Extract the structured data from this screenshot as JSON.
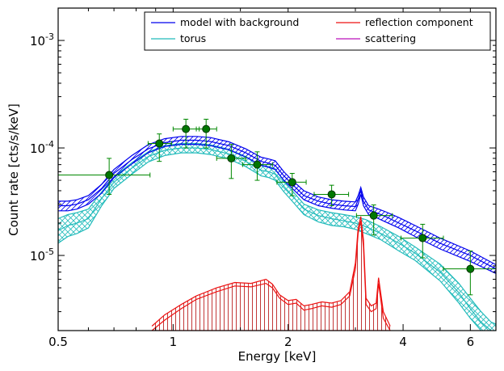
{
  "chart_data": {
    "type": "line",
    "xlabel": "Energy [keV]",
    "ylabel": "Count rate [cts/s/keV]",
    "x_scale": "log",
    "y_scale": "log",
    "xlim": [
      0.5,
      7.0
    ],
    "ylim": [
      2e-06,
      0.002
    ],
    "x_ticks": [
      {
        "value": 0.5,
        "label": "0.5"
      },
      {
        "value": 1,
        "label": "1"
      },
      {
        "value": 2,
        "label": "2"
      },
      {
        "value": 4,
        "label": "4"
      },
      {
        "value": 6,
        "label": "6"
      }
    ],
    "y_ticks": [
      {
        "value": 0.001,
        "base": "10",
        "exp": "-3"
      },
      {
        "value": 0.0001,
        "base": "10",
        "exp": "-4"
      },
      {
        "value": 1e-05,
        "base": "10",
        "exp": "-5"
      }
    ],
    "legend": {
      "position": "top-right",
      "columns": 2,
      "entries": [
        {
          "label": "model with background",
          "color": "#0000ee"
        },
        {
          "label": "reflection component",
          "color": "#ee1111"
        },
        {
          "label": "torus",
          "color": "#22bbbb"
        },
        {
          "label": "scattering",
          "color": "#bb11bb"
        }
      ]
    },
    "series": [
      {
        "name": "model with background",
        "color": "#0000ee",
        "band": true,
        "hatch": "diagonal",
        "x": [
          0.5,
          0.53,
          0.56,
          0.6,
          0.65,
          0.7,
          0.78,
          0.86,
          0.95,
          1.05,
          1.15,
          1.25,
          1.4,
          1.55,
          1.7,
          1.78,
          1.85,
          1.95,
          2.05,
          2.2,
          2.4,
          2.6,
          2.8,
          3.0,
          3.05,
          3.1,
          3.15,
          3.25,
          3.4,
          3.6,
          3.9,
          4.3,
          5.0,
          6.0,
          7.0
        ],
        "y": [
          2.9e-05,
          2.9e-05,
          3e-05,
          3.3e-05,
          4.2e-05,
          5.8e-05,
          7.8e-05,
          9.8e-05,
          0.000112,
          0.000118,
          0.000118,
          0.000115,
          0.000105,
          9e-05,
          7.5e-05,
          7.2e-05,
          6.9e-05,
          5.5e-05,
          4.6e-05,
          3.6e-05,
          3.2e-05,
          3e-05,
          2.9e-05,
          2.85e-05,
          3.3e-05,
          4e-05,
          3.2e-05,
          2.65e-05,
          2.5e-05,
          2.3e-05,
          2e-05,
          1.7e-05,
          1.3e-05,
          1e-05,
          7.5e-06
        ],
        "lower": [
          2.6e-05,
          2.6e-05,
          2.7e-05,
          3e-05,
          3.8e-05,
          5.3e-05,
          7.1e-05,
          9e-05,
          0.000103,
          0.000108,
          0.000108,
          0.000105,
          9.6e-05,
          8.2e-05,
          6.9e-05,
          6.6e-05,
          6.3e-05,
          5e-05,
          4.2e-05,
          3.3e-05,
          2.9e-05,
          2.75e-05,
          2.65e-05,
          2.6e-05,
          3e-05,
          3.7e-05,
          2.9e-05,
          2.4e-05,
          2.25e-05,
          2.05e-05,
          1.8e-05,
          1.5e-05,
          1.15e-05,
          8.8e-06,
          6.8e-06
        ],
        "upper": [
          3.2e-05,
          3.2e-05,
          3.3e-05,
          3.6e-05,
          4.6e-05,
          6.3e-05,
          8.5e-05,
          0.000107,
          0.000122,
          0.000128,
          0.000128,
          0.000125,
          0.000114,
          9.8e-05,
          8.2e-05,
          7.9e-05,
          7.6e-05,
          6e-05,
          5e-05,
          4e-05,
          3.5e-05,
          3.3e-05,
          3.2e-05,
          3.15e-05,
          3.6e-05,
          4.3e-05,
          3.5e-05,
          2.9e-05,
          2.75e-05,
          2.55e-05,
          2.25e-05,
          1.9e-05,
          1.45e-05,
          1.1e-05,
          8.2e-06
        ]
      },
      {
        "name": "torus",
        "color": "#22bbbb",
        "band": true,
        "hatch": "cross",
        "x": [
          0.5,
          0.53,
          0.56,
          0.6,
          0.65,
          0.7,
          0.78,
          0.86,
          0.95,
          1.05,
          1.15,
          1.25,
          1.4,
          1.55,
          1.7,
          1.78,
          1.85,
          1.95,
          2.05,
          2.2,
          2.4,
          2.6,
          2.8,
          3.0,
          3.2,
          3.5,
          3.9,
          4.3,
          5.0,
          5.6,
          6.0,
          6.4,
          6.8,
          7.0
        ],
        "y": [
          1.7e-05,
          1.9e-05,
          2e-05,
          2.2e-05,
          3.4e-05,
          4.8e-05,
          6.5e-05,
          8.3e-05,
          9.5e-05,
          0.0001,
          0.0001,
          9.7e-05,
          8.8e-05,
          7.5e-05,
          6.2e-05,
          6e-05,
          5.7e-05,
          4.4e-05,
          3.6e-05,
          2.7e-05,
          2.35e-05,
          2.2e-05,
          2.1e-05,
          2e-05,
          1.85e-05,
          1.6e-05,
          1.3e-05,
          1.05e-05,
          7e-06,
          4.5e-06,
          3.2e-06,
          2.4e-06,
          2e-06,
          1.9e-06
        ],
        "lower": [
          1.3e-05,
          1.5e-05,
          1.6e-05,
          1.8e-05,
          2.9e-05,
          4.2e-05,
          5.7e-05,
          7.4e-05,
          8.5e-05,
          9e-05,
          9e-05,
          8.7e-05,
          7.9e-05,
          6.7e-05,
          5.5e-05,
          5.3e-05,
          5e-05,
          3.9e-05,
          3.2e-05,
          2.4e-05,
          2.05e-05,
          1.9e-05,
          1.85e-05,
          1.75e-05,
          1.6e-05,
          1.4e-05,
          1.1e-05,
          9e-06,
          5.8e-06,
          3.6e-06,
          2.6e-06,
          2e-06,
          1.7e-06,
          1.6e-06
        ],
        "upper": [
          2.2e-05,
          2.4e-05,
          2.5e-05,
          2.7e-05,
          3.9e-05,
          5.4e-05,
          7.3e-05,
          9.2e-05,
          0.000105,
          0.00011,
          0.00011,
          0.000107,
          9.7e-05,
          8.3e-05,
          6.9e-05,
          6.7e-05,
          6.4e-05,
          4.9e-05,
          4e-05,
          3e-05,
          2.65e-05,
          2.5e-05,
          2.4e-05,
          2.3e-05,
          2.15e-05,
          1.85e-05,
          1.5e-05,
          1.2e-05,
          8.3e-06,
          5.5e-06,
          4e-06,
          3e-06,
          2.4e-06,
          2.3e-06
        ]
      },
      {
        "name": "reflection component",
        "color": "#ee1111",
        "band": true,
        "hatch": "vertical",
        "x": [
          0.88,
          0.95,
          1.05,
          1.15,
          1.3,
          1.45,
          1.6,
          1.75,
          1.82,
          1.9,
          2.0,
          2.1,
          2.2,
          2.3,
          2.45,
          2.6,
          2.75,
          2.9,
          3.0,
          3.05,
          3.1,
          3.15,
          3.2,
          3.3,
          3.4,
          3.45,
          3.55,
          3.7
        ],
        "y": [
          2e-06,
          2.5e-06,
          3.2e-06,
          3.9e-06,
          4.6e-06,
          5.2e-06,
          5.1e-06,
          5.5e-06,
          5e-06,
          4e-06,
          3.5e-06,
          3.6e-06,
          3.1e-06,
          3.2e-06,
          3.4e-06,
          3.3e-06,
          3.5e-06,
          4.2e-06,
          7.5e-06,
          1.6e-05,
          2.1e-05,
          1.2e-05,
          3.5e-06,
          3e-06,
          3.2e-06,
          5.5e-06,
          2.6e-06,
          2e-06
        ],
        "lower": [
          2e-06,
          2e-06,
          2e-06,
          2e-06,
          2e-06,
          2e-06,
          2e-06,
          2e-06,
          2e-06,
          2e-06,
          2e-06,
          2e-06,
          2e-06,
          2e-06,
          2e-06,
          2e-06,
          2e-06,
          2e-06,
          2e-06,
          2e-06,
          2e-06,
          2e-06,
          2e-06,
          2e-06,
          2e-06,
          2e-06,
          2e-06,
          2e-06
        ],
        "upper": [
          2.2e-06,
          2.8e-06,
          3.5e-06,
          4.2e-06,
          5e-06,
          5.6e-06,
          5.5e-06,
          6e-06,
          5.4e-06,
          4.3e-06,
          3.8e-06,
          3.9e-06,
          3.4e-06,
          3.5e-06,
          3.7e-06,
          3.6e-06,
          3.8e-06,
          4.6e-06,
          8.5e-06,
          1.8e-05,
          2.3e-05,
          1.4e-05,
          4e-06,
          3.4e-06,
          3.6e-06,
          6.2e-06,
          3e-06,
          2.2e-06
        ]
      },
      {
        "name": "scattering",
        "color": "#bb11bb",
        "band": false,
        "x": [],
        "y": []
      }
    ],
    "data_points": {
      "color": "#008800",
      "points": [
        {
          "x": 0.68,
          "y": 5.6e-05,
          "xerr": [
            0.5,
            0.87
          ],
          "yerr": [
            3.7e-05,
            8e-05
          ]
        },
        {
          "x": 0.92,
          "y": 0.00011,
          "xerr": [
            0.86,
            0.99
          ],
          "yerr": [
            7.5e-05,
            0.000135
          ]
        },
        {
          "x": 1.08,
          "y": 0.00015,
          "xerr": [
            1.0,
            1.17
          ],
          "yerr": [
            0.0001,
            0.000185
          ]
        },
        {
          "x": 1.22,
          "y": 0.00015,
          "xerr": [
            1.15,
            1.3
          ],
          "yerr": [
            0.0001,
            0.000185
          ]
        },
        {
          "x": 1.42,
          "y": 8e-05,
          "xerr": [
            1.3,
            1.55
          ],
          "yerr": [
            5.2e-05,
            0.000108
          ]
        },
        {
          "x": 1.66,
          "y": 7e-05,
          "xerr": [
            1.52,
            1.82
          ],
          "yerr": [
            5e-05,
            9.2e-05
          ]
        },
        {
          "x": 2.05,
          "y": 4.8e-05,
          "xerr": [
            1.87,
            2.23
          ],
          "yerr": [
            3.6e-05,
            5.8e-05
          ]
        },
        {
          "x": 2.6,
          "y": 3.7e-05,
          "xerr": [
            2.34,
            2.88
          ],
          "yerr": [
            2.9e-05,
            4.5e-05
          ]
        },
        {
          "x": 3.35,
          "y": 2.35e-05,
          "xerr": [
            3.02,
            3.75
          ],
          "yerr": [
            1.55e-05,
            2.95e-05
          ]
        },
        {
          "x": 4.5,
          "y": 1.45e-05,
          "xerr": [
            3.95,
            5.1
          ],
          "yerr": [
            9.5e-06,
            1.95e-05
          ]
        },
        {
          "x": 6.0,
          "y": 7.5e-06,
          "xerr": [
            5.1,
            7.0
          ],
          "yerr": [
            4.3e-06,
            1.1e-05
          ]
        }
      ]
    },
    "grid": false
  }
}
